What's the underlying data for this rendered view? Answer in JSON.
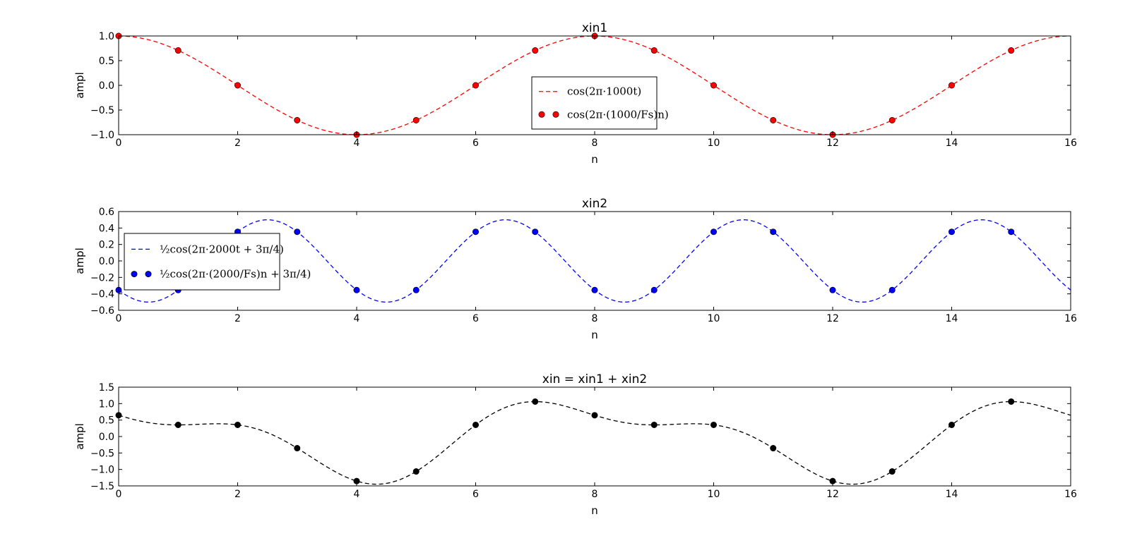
{
  "chart_data": [
    {
      "type": "line",
      "title": "xin1",
      "xlabel": "n",
      "ylabel": "ampl",
      "xlim": [
        0,
        16
      ],
      "ylim": [
        -1.0,
        1.0
      ],
      "xticks": [
        "0",
        "2",
        "4",
        "6",
        "8",
        "10",
        "12",
        "14",
        "16"
      ],
      "yticks": [
        "1.0",
        "0.5",
        "0.0",
        "−0.5",
        "−1.0"
      ],
      "legend_position": "center",
      "color": "#ff0000",
      "series": [
        {
          "name": "cos(2π·1000t)",
          "style": "dashed-line",
          "function": "cos",
          "amplitude": 1.0,
          "period_samples": 8,
          "phase": 0
        },
        {
          "name": "cos(2π·(1000/Fs)n)",
          "style": "markers",
          "x": [
            0,
            1,
            2,
            3,
            4,
            5,
            6,
            7,
            8,
            9,
            10,
            11,
            12,
            13,
            14,
            15
          ],
          "y": [
            1.0,
            0.707,
            0.0,
            -0.707,
            -1.0,
            -0.707,
            0.0,
            0.707,
            1.0,
            0.707,
            0.0,
            -0.707,
            -1.0,
            -0.707,
            0.0,
            0.707
          ]
        }
      ]
    },
    {
      "type": "line",
      "title": "xin2",
      "xlabel": "n",
      "ylabel": "ampl",
      "xlim": [
        0,
        16
      ],
      "ylim": [
        -0.6,
        0.6
      ],
      "xticks": [
        "0",
        "2",
        "4",
        "6",
        "8",
        "10",
        "12",
        "14",
        "16"
      ],
      "yticks": [
        "0.6",
        "0.4",
        "0.2",
        "0.0",
        "−0.2",
        "−0.4",
        "−0.6"
      ],
      "legend_position": "left",
      "color": "#0000ff",
      "series": [
        {
          "name": "½cos(2π·2000t + 3π/4)",
          "style": "dashed-line",
          "function": "cos",
          "amplitude": 0.5,
          "period_samples": 4,
          "phase": 2.356
        },
        {
          "name": "½cos(2π·(2000/Fs)n + 3π/4)",
          "style": "markers",
          "x": [
            0,
            1,
            2,
            3,
            4,
            5,
            6,
            7,
            8,
            9,
            10,
            11,
            12,
            13,
            14,
            15
          ],
          "y": [
            -0.354,
            -0.354,
            0.354,
            0.354,
            -0.354,
            -0.354,
            0.354,
            0.354,
            -0.354,
            -0.354,
            0.354,
            0.354,
            -0.354,
            -0.354,
            0.354,
            0.354
          ]
        }
      ]
    },
    {
      "type": "line",
      "title": "xin = xin1 + xin2",
      "xlabel": "n",
      "ylabel": "ampl",
      "xlim": [
        0,
        16
      ],
      "ylim": [
        -1.5,
        1.5
      ],
      "xticks": [
        "0",
        "2",
        "4",
        "6",
        "8",
        "10",
        "12",
        "14",
        "16"
      ],
      "yticks": [
        "1.5",
        "1.0",
        "0.5",
        "0.0",
        "−0.5",
        "−1.0",
        "−1.5"
      ],
      "color": "#000000",
      "series": [
        {
          "style": "dashed-line",
          "function": "sum",
          "components": [
            {
              "amplitude": 1.0,
              "period_samples": 8,
              "phase": 0
            },
            {
              "amplitude": 0.5,
              "period_samples": 4,
              "phase": 2.356
            }
          ]
        },
        {
          "style": "markers",
          "x": [
            0,
            1,
            2,
            3,
            4,
            5,
            6,
            7,
            8,
            9,
            10,
            11,
            12,
            13,
            14,
            15
          ],
          "y": [
            0.646,
            0.354,
            0.354,
            -0.354,
            -1.354,
            -1.061,
            0.354,
            1.061,
            0.646,
            0.354,
            0.354,
            -0.354,
            -1.354,
            -1.061,
            0.354,
            1.061
          ]
        }
      ]
    }
  ]
}
